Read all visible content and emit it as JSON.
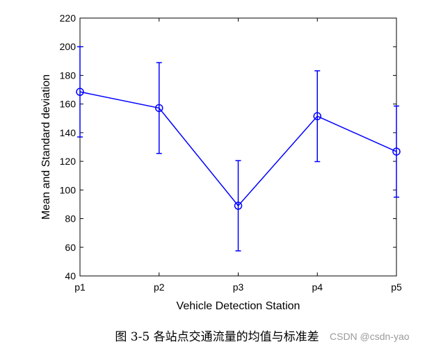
{
  "chart_data": {
    "type": "line",
    "categories": [
      "p1",
      "p2",
      "p3",
      "p4",
      "p5"
    ],
    "series": [
      {
        "values": [
          168.5,
          157.2,
          89.0,
          151.5,
          126.8
        ],
        "error": [
          31.5,
          31.7,
          31.5,
          31.7,
          31.8
        ]
      }
    ],
    "xlabel": "Vehicle Detection Station",
    "ylabel": "Mean and Standard deviation",
    "ylim": [
      40,
      220
    ],
    "yticks": [
      40,
      60,
      80,
      100,
      120,
      140,
      160,
      180,
      200,
      220
    ],
    "grid": false,
    "line_color": "#0000ff",
    "marker": "circle",
    "errorbars": true
  },
  "caption": "图 3-5 各站点交通流量的均值与标准差",
  "watermark": "CSDN @csdn-yao"
}
